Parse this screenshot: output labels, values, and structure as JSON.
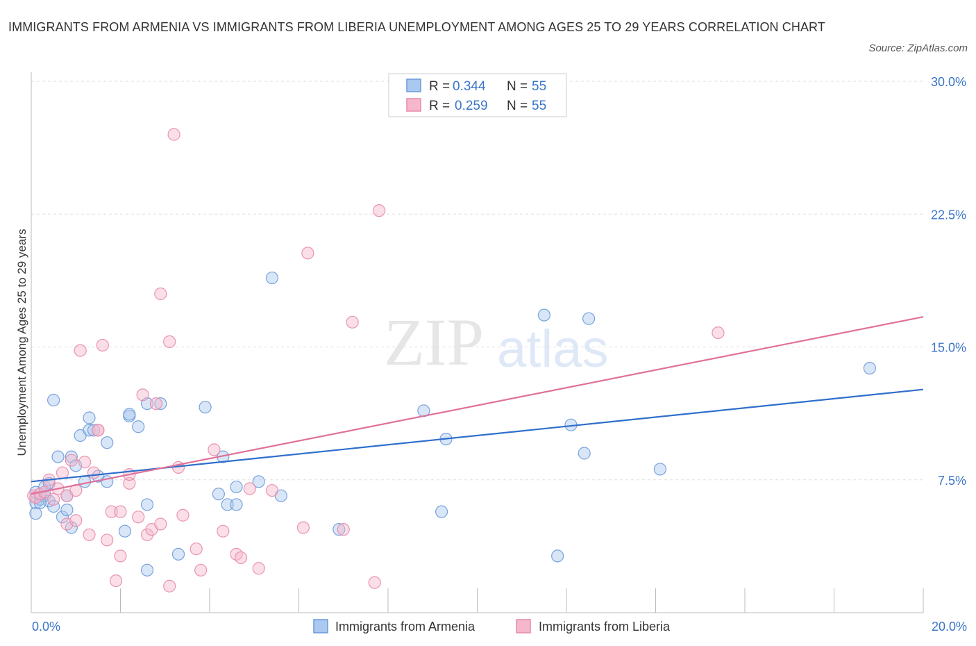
{
  "title": "IMMIGRANTS FROM ARMENIA VS IMMIGRANTS FROM LIBERIA UNEMPLOYMENT AMONG AGES 25 TO 29 YEARS CORRELATION CHART",
  "source": "Source: ZipAtlas.com",
  "watermark": {
    "zip": "ZIP",
    "atlas": "atlas"
  },
  "legend": {
    "r_label": "R =",
    "n_label": "N =",
    "rows": [
      {
        "r": "0.344",
        "n": "55"
      },
      {
        "r": "0.259",
        "n": "55"
      }
    ]
  },
  "colors": {
    "blue_fill": "#aac8f0",
    "blue_stroke": "#6a9ad8",
    "blue_line": "#2f6fcc",
    "pink_fill": "#f5b7cb",
    "pink_stroke": "#e88aa8",
    "pink_line": "#e0709a",
    "axis_text": "#3b74c9",
    "grid": "#dddddd"
  },
  "chart_data": {
    "type": "scatter",
    "title": "IMMIGRANTS FROM ARMENIA VS IMMIGRANTS FROM LIBERIA UNEMPLOYMENT AMONG AGES 25 TO 29 YEARS CORRELATION CHART",
    "xlabel": "",
    "ylabel": "Unemployment Among Ages 25 to 29 years",
    "xlim": [
      0,
      20
    ],
    "ylim": [
      0,
      30
    ],
    "x_tick_labels": [
      "0.0%",
      "20.0%"
    ],
    "y_ticks": [
      7.5,
      15.0,
      22.5,
      30.0
    ],
    "y_tick_labels": [
      "7.5%",
      "15.0%",
      "22.5%",
      "30.0%"
    ],
    "grid": true,
    "series": [
      {
        "name": "Immigrants from Armenia",
        "color": "blue",
        "trend": [
          [
            0,
            7.4
          ],
          [
            20,
            12.6
          ]
        ],
        "points": [
          [
            0.1,
            6.2
          ],
          [
            0.1,
            5.6
          ],
          [
            0.2,
            6.4
          ],
          [
            0.3,
            7.1
          ],
          [
            0.3,
            6.6
          ],
          [
            0.4,
            7.3
          ],
          [
            0.4,
            6.3
          ],
          [
            0.5,
            12.0
          ],
          [
            0.5,
            6.0
          ],
          [
            0.6,
            8.8
          ],
          [
            0.7,
            5.4
          ],
          [
            0.8,
            6.6
          ],
          [
            0.8,
            5.8
          ],
          [
            0.9,
            4.8
          ],
          [
            0.9,
            8.8
          ],
          [
            1.0,
            8.3
          ],
          [
            1.1,
            10.0
          ],
          [
            1.2,
            7.4
          ],
          [
            1.3,
            11.0
          ],
          [
            1.3,
            10.3
          ],
          [
            1.4,
            10.3
          ],
          [
            1.5,
            7.7
          ],
          [
            1.7,
            9.6
          ],
          [
            1.7,
            7.4
          ],
          [
            2.1,
            4.6
          ],
          [
            2.2,
            11.1
          ],
          [
            2.2,
            11.2
          ],
          [
            2.4,
            10.5
          ],
          [
            2.6,
            2.4
          ],
          [
            2.6,
            6.1
          ],
          [
            2.6,
            11.8
          ],
          [
            2.9,
            11.8
          ],
          [
            3.3,
            3.3
          ],
          [
            3.9,
            11.6
          ],
          [
            4.2,
            6.7
          ],
          [
            4.3,
            8.8
          ],
          [
            4.4,
            6.1
          ],
          [
            4.6,
            7.1
          ],
          [
            4.6,
            6.1
          ],
          [
            5.1,
            7.4
          ],
          [
            5.4,
            18.9
          ],
          [
            5.6,
            6.6
          ],
          [
            6.9,
            4.7
          ],
          [
            8.8,
            11.4
          ],
          [
            9.2,
            5.7
          ],
          [
            9.3,
            9.8
          ],
          [
            11.5,
            16.8
          ],
          [
            11.8,
            3.2
          ],
          [
            12.1,
            10.6
          ],
          [
            12.4,
            9.0
          ],
          [
            12.5,
            16.6
          ],
          [
            14.1,
            8.1
          ],
          [
            18.8,
            13.8
          ],
          [
            0.1,
            6.8
          ],
          [
            0.2,
            6.2
          ]
        ]
      },
      {
        "name": "Immigrants from Liberia",
        "color": "pink",
        "trend": [
          [
            0,
            6.7
          ],
          [
            20,
            16.7
          ]
        ],
        "points": [
          [
            0.05,
            6.6
          ],
          [
            0.1,
            6.5
          ],
          [
            0.2,
            6.7
          ],
          [
            0.3,
            6.8
          ],
          [
            0.4,
            7.5
          ],
          [
            0.5,
            6.4
          ],
          [
            0.6,
            7.0
          ],
          [
            0.7,
            7.9
          ],
          [
            0.8,
            6.6
          ],
          [
            0.8,
            5.0
          ],
          [
            0.9,
            8.6
          ],
          [
            1.0,
            5.2
          ],
          [
            1.0,
            6.9
          ],
          [
            1.1,
            14.8
          ],
          [
            1.2,
            8.5
          ],
          [
            1.3,
            4.4
          ],
          [
            1.4,
            7.9
          ],
          [
            1.5,
            10.3
          ],
          [
            1.6,
            15.1
          ],
          [
            1.7,
            4.1
          ],
          [
            1.8,
            5.7
          ],
          [
            1.9,
            1.8
          ],
          [
            2.0,
            5.7
          ],
          [
            2.0,
            3.2
          ],
          [
            2.2,
            7.3
          ],
          [
            2.2,
            7.8
          ],
          [
            2.4,
            5.4
          ],
          [
            2.5,
            12.3
          ],
          [
            2.6,
            4.4
          ],
          [
            2.7,
            4.7
          ],
          [
            2.8,
            11.8
          ],
          [
            2.9,
            5.0
          ],
          [
            2.9,
            18.0
          ],
          [
            3.1,
            15.3
          ],
          [
            3.1,
            1.5
          ],
          [
            3.3,
            8.2
          ],
          [
            3.4,
            5.5
          ],
          [
            3.7,
            3.6
          ],
          [
            3.8,
            2.4
          ],
          [
            4.1,
            9.2
          ],
          [
            4.3,
            4.6
          ],
          [
            4.6,
            3.3
          ],
          [
            4.7,
            3.1
          ],
          [
            4.9,
            7.0
          ],
          [
            5.1,
            2.5
          ],
          [
            5.4,
            6.9
          ],
          [
            6.1,
            4.8
          ],
          [
            6.2,
            20.3
          ],
          [
            7.0,
            4.7
          ],
          [
            7.2,
            16.4
          ],
          [
            7.8,
            22.7
          ],
          [
            7.7,
            1.7
          ],
          [
            3.2,
            27.0
          ],
          [
            15.4,
            15.8
          ],
          [
            1.5,
            10.3
          ]
        ]
      }
    ]
  },
  "bottom_legend": [
    "Immigrants from Armenia",
    "Immigrants from Liberia"
  ]
}
